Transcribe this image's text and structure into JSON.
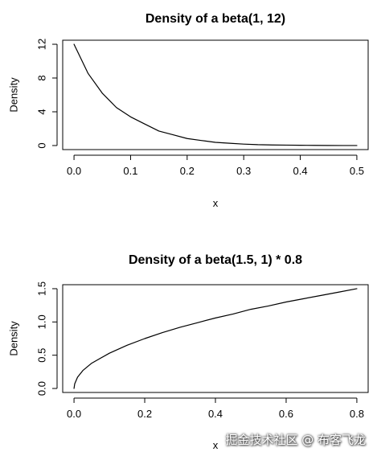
{
  "chart_data": [
    {
      "type": "line",
      "title": "Density of a beta(1, 12)",
      "xlabel": "x",
      "ylabel": "Density",
      "xlim": [
        0,
        0.5
      ],
      "ylim": [
        0,
        12
      ],
      "xticks": [
        0,
        0.1,
        0.2,
        0.3,
        0.4,
        0.5
      ],
      "xtick_labels": [
        "0.0",
        "0.1",
        "0.2",
        "0.3",
        "0.4",
        "0.5"
      ],
      "yticks": [
        0,
        4,
        8,
        12
      ],
      "ytick_labels": [
        "0",
        "4",
        "8",
        "12"
      ],
      "grid": false,
      "series": [
        {
          "color": "#000000",
          "x": [
            0,
            0.025,
            0.05,
            0.075,
            0.1,
            0.125,
            0.15,
            0.175,
            0.2,
            0.225,
            0.25,
            0.275,
            0.3,
            0.325,
            0.35,
            0.375,
            0.4,
            0.425,
            0.45,
            0.475,
            0.5
          ],
          "y": [
            12,
            8.53,
            6.2,
            4.5,
            3.4,
            2.55,
            1.72,
            1.28,
            0.83,
            0.6,
            0.38,
            0.27,
            0.17,
            0.1,
            0.07,
            0.05,
            0.03,
            0.02,
            0.01,
            0.0,
            0.0
          ]
        }
      ]
    },
    {
      "type": "line",
      "title": "Density of a beta(1.5, 1) * 0.8",
      "xlabel": "x",
      "ylabel": "Density",
      "xlim": [
        0,
        0.8
      ],
      "ylim": [
        0,
        1.5
      ],
      "xticks": [
        0,
        0.2,
        0.4,
        0.6,
        0.8
      ],
      "xtick_labels": [
        "0.0",
        "0.2",
        "0.4",
        "0.6",
        "0.8"
      ],
      "yticks": [
        0,
        0.5,
        1.0,
        1.5
      ],
      "ytick_labels": [
        "0.0",
        "0.5",
        "1.0",
        "1.5"
      ],
      "grid": false,
      "series": [
        {
          "color": "#000000",
          "x": [
            0,
            0.002,
            0.01,
            0.025,
            0.05,
            0.1,
            0.15,
            0.2,
            0.25,
            0.3,
            0.35,
            0.4,
            0.45,
            0.5,
            0.55,
            0.6,
            0.65,
            0.7,
            0.75,
            0.8
          ],
          "y": [
            0,
            0.07,
            0.17,
            0.27,
            0.38,
            0.53,
            0.65,
            0.75,
            0.84,
            0.92,
            0.99,
            1.06,
            1.12,
            1.19,
            1.24,
            1.3,
            1.35,
            1.4,
            1.45,
            1.5
          ]
        }
      ]
    }
  ],
  "watermark": "掘金技术社区 @ 布客飞龙"
}
